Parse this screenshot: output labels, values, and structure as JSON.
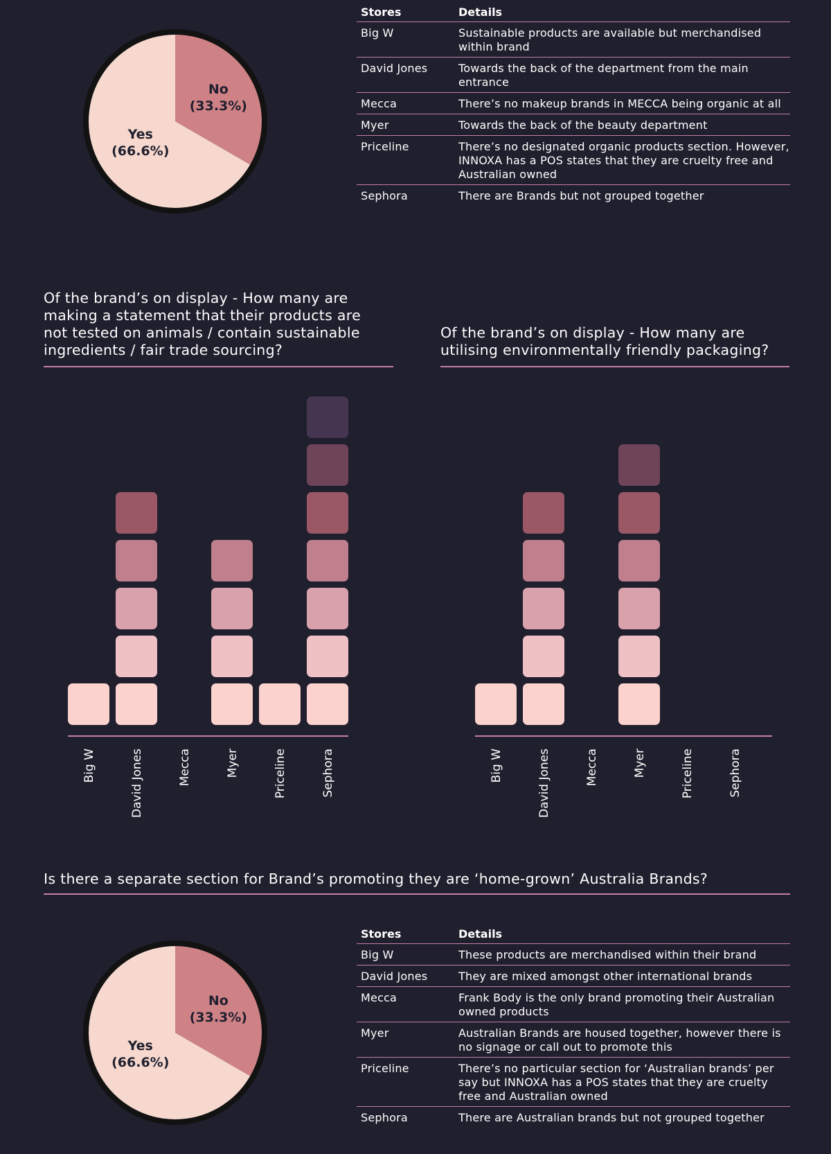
{
  "top_section": {
    "table": {
      "headers": {
        "store": "Stores",
        "details": "Details"
      },
      "rows": [
        {
          "store": "Big W",
          "details": "Sustainable products are available but merchandised within brand"
        },
        {
          "store": "David Jones",
          "details": "Towards the back of the department from the main entrance"
        },
        {
          "store": "Mecca",
          "details": "There’s no makeup brands in MECCA being organic at all"
        },
        {
          "store": "Myer",
          "details": "Towards the back of the beauty department"
        },
        {
          "store": "Priceline",
          "details": "There’s no designated organic products section. However, INNOXA has a POS states that they are cruelty free and Australian owned"
        },
        {
          "store": "Sephora",
          "details": "There are Brands but not grouped together"
        }
      ]
    }
  },
  "middle_section": {
    "question_left": "Of the brand’s on display - How many are making a statement that their products are not tested on animals / contain sustainable ingredients / fair trade sourcing?",
    "question_right": "Of the brand’s on display - How many are utilising environmentally friendly packaging?"
  },
  "bottom_section": {
    "question": "Is there a separate section for Brand’s promoting they are ‘home-grown’ Australia Brands?",
    "table": {
      "headers": {
        "store": "Stores",
        "details": "Details"
      },
      "rows": [
        {
          "store": "Big W",
          "details": "These products are merchandised within their brand"
        },
        {
          "store": "David Jones",
          "details": "They are mixed amongst other international brands"
        },
        {
          "store": "Mecca",
          "details": "Frank Body is the only brand promoting their Australian owned products"
        },
        {
          "store": "Myer",
          "details": "Australian Brands are housed together, however there is no signage or call out to promote this"
        },
        {
          "store": "Priceline",
          "details": "There’s no particular section for ‘Australian brands’ per say but INNOXA has a POS states that they are cruelty free and Australian owned"
        },
        {
          "store": "Sephora",
          "details": "There are Australian brands but not grouped together"
        }
      ]
    }
  },
  "colors": {
    "background": "#1f1f2e",
    "accent_rule": "#c77fa6",
    "pie_yes": "#f6d8ce",
    "pie_no": "#cf8286",
    "pie_rim": "#121212",
    "bar_steps": [
      "#fbd2cd",
      "#efc1c5",
      "#d9a1ab",
      "#c07f8c",
      "#9a5866",
      "#6e4459",
      "#463550"
    ]
  },
  "chart_data": [
    {
      "type": "pie",
      "slices": [
        {
          "label": "No",
          "pct_label": "(33.3%)",
          "value": 33.3
        },
        {
          "label": "Yes",
          "pct_label": "(66.6%)",
          "value": 66.6
        }
      ]
    },
    {
      "type": "bar",
      "title": "Of the brand’s on display - How many are making a statement that their products are not tested on animals / contain sustainable ingredients / fair trade sourcing?",
      "categories": [
        "Big W",
        "David Jones",
        "Mecca",
        "Myer",
        "Priceline",
        "Sephora"
      ],
      "values": [
        1,
        5,
        0,
        4,
        1,
        7
      ]
    },
    {
      "type": "bar",
      "title": "Of the brand’s on display - How many are utilising environmentally friendly packaging?",
      "categories": [
        "Big W",
        "David Jones",
        "Mecca",
        "Myer",
        "Priceline",
        "Sephora"
      ],
      "values": [
        1,
        5,
        0,
        6,
        0,
        0
      ]
    },
    {
      "type": "pie",
      "slices": [
        {
          "label": "No",
          "pct_label": "(33.3%)",
          "value": 33.3
        },
        {
          "label": "Yes",
          "pct_label": "(66.6%)",
          "value": 66.6
        }
      ]
    }
  ]
}
